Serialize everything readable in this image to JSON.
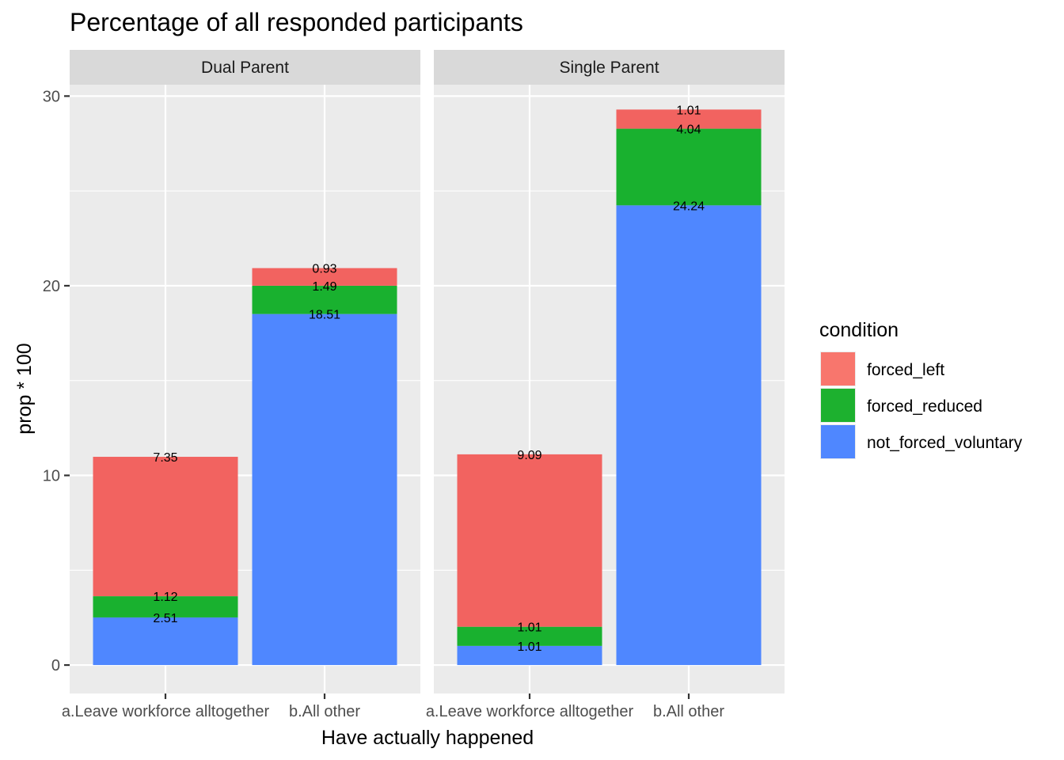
{
  "chart_data": {
    "type": "bar",
    "stacked": true,
    "title": "Percentage of all responded participants",
    "xlabel": "Have actually happened",
    "ylabel": "prop * 100",
    "ylim": [
      -1.5,
      30.6
    ],
    "y_ticks": [
      0,
      10,
      20,
      30
    ],
    "grid": true,
    "categories": [
      "a.Leave workforce alltogether",
      "b.All other"
    ],
    "facets": [
      {
        "name": "Dual Parent",
        "series": [
          {
            "name": "not_forced_voluntary",
            "values": [
              2.51,
              18.51
            ]
          },
          {
            "name": "forced_reduced",
            "values": [
              1.12,
              1.49
            ]
          },
          {
            "name": "forced_left",
            "values": [
              7.35,
              0.93
            ]
          }
        ]
      },
      {
        "name": "Single Parent",
        "series": [
          {
            "name": "not_forced_voluntary",
            "values": [
              1.01,
              24.24
            ]
          },
          {
            "name": "forced_reduced",
            "values": [
              1.01,
              4.04
            ]
          },
          {
            "name": "forced_left",
            "values": [
              9.09,
              1.01
            ]
          }
        ]
      }
    ],
    "legend": {
      "title": "condition",
      "placement": "right",
      "items": [
        {
          "name": "forced_left",
          "color": "#F8766D"
        },
        {
          "name": "forced_reduced",
          "color": "#1DB12F"
        },
        {
          "name": "not_forced_voluntary",
          "color": "#4F87FF"
        }
      ]
    },
    "colors": {
      "forced_left": "#F26360",
      "forced_reduced": "#19B12F",
      "not_forced_voluntary": "#4F87FF",
      "panel_background": "#EBEBEB",
      "strip_background": "#D9D9D9",
      "grid": "#FFFFFF"
    }
  }
}
